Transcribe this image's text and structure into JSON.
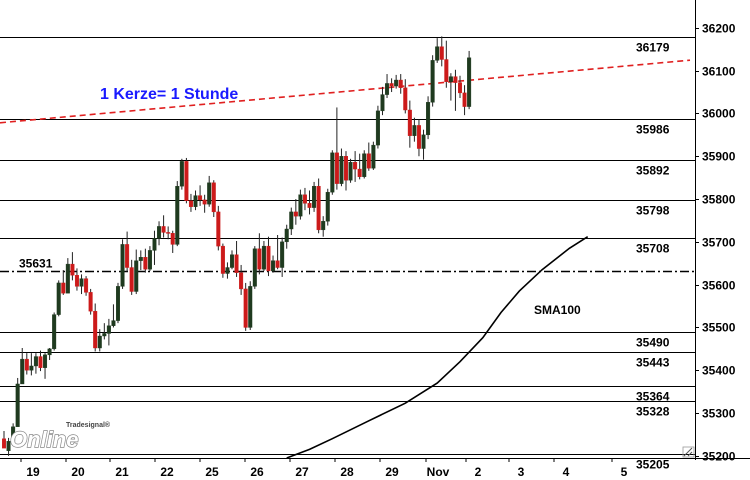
{
  "chart_data": {
    "type": "candlestick",
    "annotation": "1 Kerze= 1 Stunde",
    "annotation_color": "#1a1aff",
    "sma_label": "SMA100",
    "watermark": {
      "small": "Tradesignal®",
      "big": "Online"
    },
    "ylim": [
      35195,
      36265
    ],
    "y_ticks": [
      35200,
      35300,
      35400,
      35500,
      35600,
      35700,
      35800,
      35900,
      36000,
      36100,
      36200
    ],
    "x_ticks": [
      "19",
      "20",
      "21",
      "22",
      "25",
      "26",
      "27",
      "28",
      "29",
      "Nov",
      "2",
      "3",
      "4",
      "5"
    ],
    "levels": [
      {
        "label": "36179",
        "value": 36179
      },
      {
        "label": "35986",
        "value": 35986
      },
      {
        "label": "35892",
        "value": 35892
      },
      {
        "label": "35798",
        "value": 35798
      },
      {
        "label": "35708",
        "value": 35708
      },
      {
        "label": "35490",
        "value": 35490
      },
      {
        "label": "35443",
        "value": 35443
      },
      {
        "label": "35364",
        "value": 35364
      },
      {
        "label": "35328",
        "value": 35328
      },
      {
        "label": "35205",
        "value": 35205
      }
    ],
    "dash_dot_level": {
      "label": "35631",
      "value": 35631
    },
    "trendline": {
      "start": {
        "bar": 0,
        "value": 35979
      },
      "end": {
        "bar": 120,
        "value": 36095
      },
      "color": "#e02020"
    },
    "sma100": [
      {
        "bar": 62,
        "value": 35195
      },
      {
        "bar": 67,
        "value": 35215
      },
      {
        "bar": 72,
        "value": 35240
      },
      {
        "bar": 80,
        "value": 35282
      },
      {
        "bar": 88,
        "value": 35323
      },
      {
        "bar": 95,
        "value": 35370
      },
      {
        "bar": 100,
        "value": 35420
      },
      {
        "bar": 105,
        "value": 35476
      },
      {
        "bar": 109,
        "value": 35535
      },
      {
        "bar": 113,
        "value": 35585
      },
      {
        "bar": 118,
        "value": 35635
      },
      {
        "bar": 124,
        "value": 35685
      },
      {
        "bar": 128,
        "value": 35712
      }
    ],
    "candles_ohlc": [
      [
        35240,
        35258,
        35224,
        35218
      ],
      [
        35212,
        35242,
        35200,
        35234
      ],
      [
        35234,
        35276,
        35226,
        35268
      ],
      [
        35268,
        35382,
        35270,
        35368
      ],
      [
        35368,
        35452,
        35370,
        35426
      ],
      [
        35426,
        35440,
        35390,
        35400
      ],
      [
        35400,
        35440,
        35388,
        35410
      ],
      [
        35410,
        35440,
        35392,
        35432
      ],
      [
        35432,
        35446,
        35398,
        35406
      ],
      [
        35406,
        35440,
        35380,
        35436
      ],
      [
        35436,
        35452,
        35424,
        35450
      ],
      [
        35450,
        35535,
        35446,
        35530
      ],
      [
        35530,
        35610,
        35526,
        35604
      ],
      [
        35604,
        35634,
        35576,
        35580
      ],
      [
        35580,
        35662,
        35584,
        35648
      ],
      [
        35648,
        35676,
        35610,
        35622
      ],
      [
        35622,
        35638,
        35586,
        35596
      ],
      [
        35596,
        35624,
        35578,
        35614
      ],
      [
        35614,
        35620,
        35574,
        35582
      ],
      [
        35582,
        35590,
        35530,
        35538
      ],
      [
        35538,
        35556,
        35444,
        35452
      ],
      [
        35452,
        35496,
        35444,
        35480
      ],
      [
        35480,
        35510,
        35472,
        35486
      ],
      [
        35486,
        35520,
        35458,
        35504
      ],
      [
        35504,
        35554,
        35500,
        35516
      ],
      [
        35516,
        35604,
        35510,
        35596
      ],
      [
        35596,
        35706,
        35590,
        35694
      ],
      [
        35694,
        35724,
        35630,
        35640
      ],
      [
        35640,
        35658,
        35576,
        35584
      ],
      [
        35584,
        35682,
        35578,
        35656
      ],
      [
        35656,
        35680,
        35634,
        35664
      ],
      [
        35664,
        35684,
        35628,
        35636
      ],
      [
        35636,
        35690,
        35632,
        35680
      ],
      [
        35680,
        35726,
        35646,
        35708
      ],
      [
        35708,
        35748,
        35692,
        35736
      ],
      [
        35736,
        35762,
        35710,
        35722
      ],
      [
        35722,
        35736,
        35706,
        35720
      ],
      [
        35720,
        35726,
        35674,
        35694
      ],
      [
        35694,
        35842,
        35690,
        35830
      ],
      [
        35830,
        35894,
        35822,
        35888
      ],
      [
        35888,
        35896,
        35790,
        35796
      ],
      [
        35796,
        35812,
        35770,
        35782
      ],
      [
        35782,
        35820,
        35774,
        35808
      ],
      [
        35808,
        35832,
        35784,
        35798
      ],
      [
        35798,
        35810,
        35768,
        35788
      ],
      [
        35788,
        35854,
        35782,
        35838
      ],
      [
        35838,
        35844,
        35758,
        35770
      ],
      [
        35770,
        35784,
        35680,
        35690
      ],
      [
        35690,
        35696,
        35616,
        35626
      ],
      [
        35626,
        35652,
        35614,
        35640
      ],
      [
        35640,
        35680,
        35636,
        35670
      ],
      [
        35670,
        35702,
        35618,
        35628
      ],
      [
        35628,
        35646,
        35576,
        35590
      ],
      [
        35590,
        35604,
        35492,
        35500
      ],
      [
        35500,
        35608,
        35494,
        35596
      ],
      [
        35596,
        35690,
        35590,
        35684
      ],
      [
        35684,
        35720,
        35624,
        35636
      ],
      [
        35636,
        35702,
        35632,
        35690
      ],
      [
        35690,
        35712,
        35620,
        35632
      ],
      [
        35632,
        35668,
        35628,
        35656
      ],
      [
        35656,
        35716,
        35636,
        35640
      ],
      [
        35640,
        35710,
        35618,
        35700
      ],
      [
        35700,
        35740,
        35684,
        35730
      ],
      [
        35730,
        35780,
        35716,
        35770
      ],
      [
        35770,
        35800,
        35740,
        35760
      ],
      [
        35760,
        35822,
        35752,
        35810
      ],
      [
        35810,
        35826,
        35774,
        35790
      ],
      [
        35790,
        35820,
        35764,
        35780
      ],
      [
        35780,
        35840,
        35770,
        35830
      ],
      [
        35830,
        35848,
        35720,
        35728
      ],
      [
        35728,
        35760,
        35712,
        35748
      ],
      [
        35748,
        35824,
        35738,
        35816
      ],
      [
        35816,
        35914,
        35810,
        35908
      ],
      [
        35908,
        36014,
        35822,
        35836
      ],
      [
        35836,
        35918,
        35830,
        35900
      ],
      [
        35900,
        35912,
        35820,
        35844
      ],
      [
        35844,
        35894,
        35838,
        35886
      ],
      [
        35886,
        35912,
        35840,
        35870
      ],
      [
        35870,
        35906,
        35846,
        35852
      ],
      [
        35852,
        35914,
        35848,
        35906
      ],
      [
        35906,
        35932,
        35866,
        35872
      ],
      [
        35872,
        35934,
        35868,
        35926
      ],
      [
        35926,
        36018,
        35918,
        36006
      ],
      [
        36006,
        36062,
        35996,
        36044
      ],
      [
        36044,
        36092,
        36036,
        36070
      ],
      [
        36070,
        36082,
        36050,
        36064
      ],
      [
        36064,
        36090,
        36058,
        36078
      ],
      [
        36078,
        36092,
        36046,
        36060
      ],
      [
        36060,
        36080,
        36000,
        36008
      ],
      [
        36008,
        36030,
        35920,
        35948
      ],
      [
        35948,
        35990,
        35934,
        35972
      ],
      [
        35972,
        35986,
        35900,
        35918
      ],
      [
        35918,
        35962,
        35892,
        35950
      ],
      [
        35950,
        36040,
        35940,
        36026
      ],
      [
        36026,
        36136,
        36016,
        36124
      ],
      [
        36124,
        36176,
        36118,
        36156
      ],
      [
        36156,
        36180,
        36110,
        36126
      ],
      [
        36126,
        36170,
        36060,
        36074
      ],
      [
        36074,
        36094,
        36030,
        36086
      ],
      [
        36086,
        36102,
        36006,
        36072
      ],
      [
        36072,
        36088,
        36036,
        36048
      ],
      [
        36048,
        36066,
        35996,
        36016
      ],
      [
        36016,
        36146,
        36010,
        36130
      ]
    ]
  }
}
